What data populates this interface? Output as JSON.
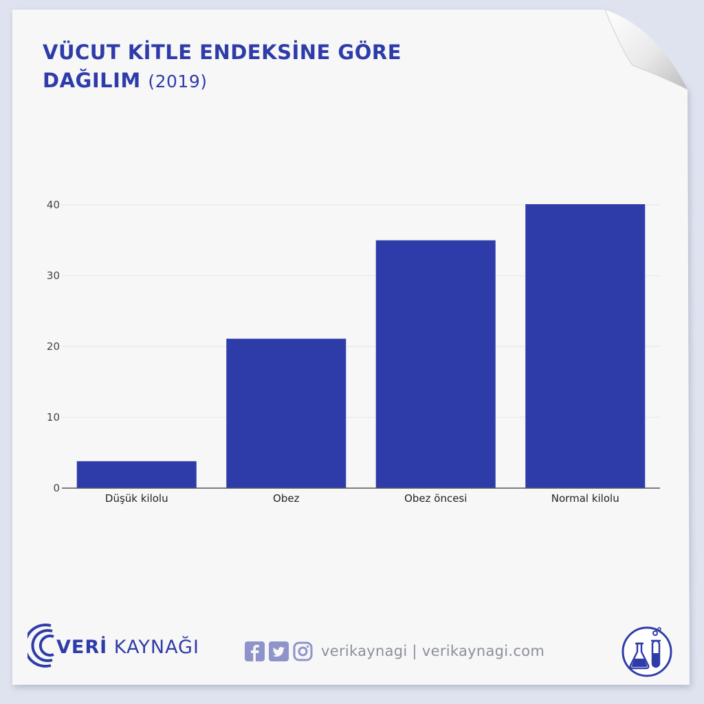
{
  "title": {
    "line1": "VÜCUT KİTLE ENDEKSİNE GÖRE",
    "line2": "DAĞILIM",
    "year": "(2019)"
  },
  "footer": {
    "brand_bold": "VERİ",
    "brand_rest": " KAYNAĞI",
    "social_text": "verikaynagi | verikaynagi.com"
  },
  "colors": {
    "accent": "#2e3ca9",
    "bar": "#2e3ca9",
    "icon_light": "#8e93c9"
  },
  "chart_data": {
    "type": "bar",
    "categories": [
      "Düşük kilolu",
      "Obez",
      "Obez öncesi",
      "Normal kilolu"
    ],
    "values": [
      3.8,
      21.1,
      35.0,
      40.1
    ],
    "title": "VÜCUT KİTLE ENDEKSİNE GÖRE DAĞILIM (2019)",
    "xlabel": "",
    "ylabel": "",
    "ylim": [
      0,
      40.1
    ],
    "yticks": [
      0,
      10,
      20,
      30,
      40
    ],
    "grid": true,
    "legend": "none"
  }
}
